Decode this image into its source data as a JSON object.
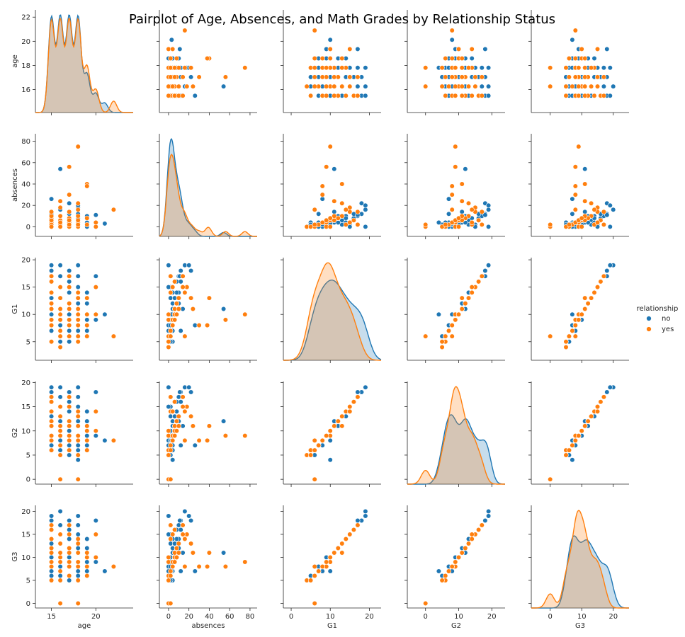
{
  "chart_data": {
    "type": "scatter",
    "title": "Pairplot of Age, Absences, and Math Grades by Relationship Status",
    "variables": [
      "age",
      "absences",
      "G1",
      "G2",
      "G3"
    ],
    "diagonal": "kde",
    "legend": {
      "title": "relationship",
      "placement": "right",
      "entries": [
        {
          "name": "no",
          "color": "#1f77b4"
        },
        {
          "name": "yes",
          "color": "#ff7f0e"
        }
      ]
    },
    "axes": {
      "age": {
        "range": [
          13.2,
          24.2
        ],
        "ticks": [
          15,
          20
        ],
        "diag_ticks": [
          16,
          18,
          20,
          22
        ]
      },
      "absences": {
        "range": [
          -9,
          87
        ],
        "ticks": [
          0,
          20,
          40,
          60,
          80
        ]
      },
      "G1": {
        "range": [
          -2,
          23
        ],
        "ticks": [
          0,
          10,
          20
        ],
        "y_range": [
          1.6,
          20.4
        ],
        "y_ticks": [
          5,
          10,
          15,
          20
        ]
      },
      "G2": {
        "range": [
          -5.5,
          24
        ],
        "ticks": [
          0,
          10,
          20
        ],
        "y_range": [
          -1,
          20.2
        ],
        "y_ticks": [
          0,
          5,
          10,
          15,
          20
        ]
      },
      "G3": {
        "range": [
          -6,
          25
        ],
        "ticks": [
          0,
          10,
          20
        ],
        "y_range": [
          -1,
          21.3
        ],
        "y_ticks": [
          0,
          5,
          10,
          15,
          20
        ]
      }
    },
    "series": [
      {
        "name": "no",
        "color": "#1f77b4",
        "points": [
          [
            15,
            2,
            5,
            6,
            6
          ],
          [
            15,
            4,
            7,
            7,
            8
          ],
          [
            15,
            6,
            10,
            9,
            10
          ],
          [
            15,
            10,
            14,
            13,
            14
          ],
          [
            15,
            8,
            16,
            16,
            16
          ],
          [
            15,
            12,
            18,
            18,
            18
          ],
          [
            15,
            0,
            19,
            19,
            19
          ],
          [
            15,
            4,
            12,
            11,
            12
          ],
          [
            15,
            26,
            8,
            7,
            7
          ],
          [
            15,
            2,
            13,
            13,
            13
          ],
          [
            16,
            0,
            6,
            5,
            6
          ],
          [
            16,
            2,
            9,
            9,
            10
          ],
          [
            16,
            4,
            11,
            11,
            11
          ],
          [
            16,
            6,
            13,
            13,
            13
          ],
          [
            16,
            10,
            17,
            17,
            17
          ],
          [
            16,
            16,
            19,
            19,
            20
          ],
          [
            16,
            54,
            11,
            12,
            11
          ],
          [
            16,
            2,
            15,
            15,
            15
          ],
          [
            16,
            0,
            8,
            8,
            8
          ],
          [
            16,
            4,
            5,
            6,
            5
          ],
          [
            17,
            0,
            7,
            7,
            8
          ],
          [
            17,
            2,
            10,
            10,
            10
          ],
          [
            17,
            4,
            12,
            12,
            12
          ],
          [
            17,
            8,
            14,
            14,
            14
          ],
          [
            17,
            12,
            16,
            16,
            16
          ],
          [
            17,
            22,
            18,
            18,
            18
          ],
          [
            17,
            6,
            9,
            9,
            9
          ],
          [
            17,
            14,
            11,
            11,
            11
          ],
          [
            17,
            2,
            5,
            5,
            5
          ],
          [
            17,
            0,
            15,
            15,
            15
          ],
          [
            18,
            0,
            6,
            6,
            6
          ],
          [
            18,
            2,
            8,
            8,
            8
          ],
          [
            18,
            6,
            11,
            11,
            11
          ],
          [
            18,
            10,
            13,
            13,
            13
          ],
          [
            18,
            18,
            15,
            15,
            15
          ],
          [
            18,
            20,
            19,
            19,
            19
          ],
          [
            18,
            4,
            10,
            4,
            7
          ],
          [
            18,
            12,
            7,
            7,
            7
          ],
          [
            18,
            2,
            17,
            17,
            17
          ],
          [
            18,
            8,
            12,
            12,
            12
          ],
          [
            19,
            2,
            9,
            9,
            9
          ],
          [
            19,
            10,
            12,
            12,
            12
          ],
          [
            19,
            0,
            7,
            7,
            7
          ],
          [
            19,
            4,
            14,
            14,
            14
          ],
          [
            20,
            0,
            9,
            9,
            9
          ],
          [
            20,
            11,
            17,
            18,
            18
          ],
          [
            21,
            3,
            10,
            8,
            7
          ]
        ]
      },
      {
        "name": "yes",
        "color": "#ff7f0e",
        "points": [
          [
            15,
            0,
            5,
            6,
            5
          ],
          [
            15,
            4,
            8,
            8,
            8
          ],
          [
            15,
            8,
            12,
            12,
            12
          ],
          [
            15,
            2,
            14,
            14,
            14
          ],
          [
            15,
            6,
            16,
            16,
            16
          ],
          [
            15,
            10,
            11,
            11,
            11
          ],
          [
            15,
            0,
            9,
            9,
            9
          ],
          [
            15,
            14,
            17,
            17,
            17
          ],
          [
            16,
            0,
            4,
            5,
            5
          ],
          [
            16,
            2,
            7,
            7,
            7
          ],
          [
            16,
            6,
            10,
            10,
            10
          ],
          [
            16,
            10,
            13,
            13,
            13
          ],
          [
            16,
            18,
            15,
            15,
            15
          ],
          [
            16,
            24,
            11,
            11,
            11
          ],
          [
            16,
            0,
            6,
            0,
            0
          ],
          [
            16,
            4,
            9,
            9,
            9
          ],
          [
            17,
            0,
            6,
            6,
            6
          ],
          [
            17,
            4,
            9,
            9,
            9
          ],
          [
            17,
            8,
            12,
            12,
            12
          ],
          [
            17,
            14,
            15,
            15,
            15
          ],
          [
            17,
            56,
            9,
            9,
            8
          ],
          [
            17,
            30,
            8,
            8,
            8
          ],
          [
            17,
            2,
            17,
            17,
            17
          ],
          [
            17,
            6,
            11,
            11,
            11
          ],
          [
            18,
            0,
            5,
            5,
            5
          ],
          [
            18,
            4,
            8,
            8,
            8
          ],
          [
            18,
            10,
            11,
            11,
            11
          ],
          [
            18,
            16,
            14,
            14,
            14
          ],
          [
            18,
            75,
            10,
            9,
            9
          ],
          [
            18,
            22,
            13,
            13,
            13
          ],
          [
            18,
            2,
            6,
            0,
            0
          ],
          [
            18,
            6,
            9,
            9,
            9
          ],
          [
            19,
            2,
            6,
            6,
            6
          ],
          [
            19,
            8,
            10,
            10,
            10
          ],
          [
            19,
            40,
            13,
            11,
            11
          ],
          [
            19,
            38,
            8,
            8,
            8
          ],
          [
            20,
            0,
            10,
            10,
            10
          ],
          [
            20,
            4,
            15,
            14,
            15
          ],
          [
            22,
            16,
            6,
            8,
            8
          ]
        ]
      }
    ]
  }
}
